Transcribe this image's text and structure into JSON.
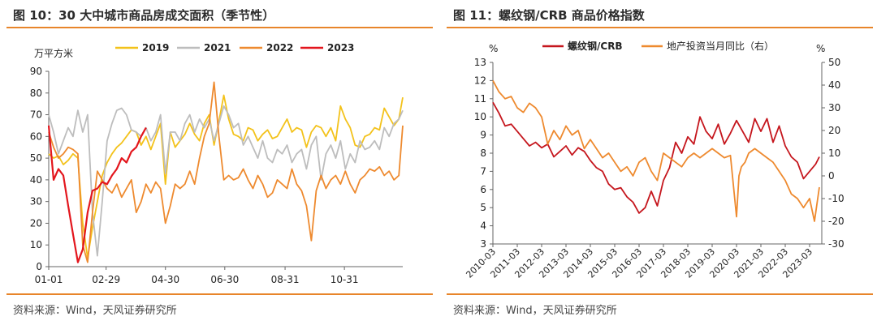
{
  "colors": {
    "accent": "#e8852a",
    "c2019": "#f3c21b",
    "c2021": "#bdbdbd",
    "c2022": "#ee8a2f",
    "c2023": "#e3161d",
    "rebar": "#c5161d",
    "landinv": "#ee8a2f"
  },
  "left": {
    "title": "图 10：30 大中城市商品房成交面积（季节性）",
    "source": "资料来源：Wind，天风证券研究所"
  },
  "right": {
    "title": "图 11：螺纹钢/CRB 商品价格指数",
    "source": "资料来源：Wind，天风证券研究所"
  },
  "chart_data": [
    {
      "type": "line",
      "title": "30 大中城市商品房成交面积（季节性）",
      "ylabel": "万平方米",
      "ylim": [
        0,
        90
      ],
      "yticks": [
        "0",
        "10",
        "20",
        "30",
        "40",
        "50",
        "60",
        "70",
        "80",
        "90"
      ],
      "xlim": [
        1,
        365
      ],
      "xtick_labels": [
        {
          "d": 1,
          "label": "01-01"
        },
        {
          "d": 60,
          "label": "02-29"
        },
        {
          "d": 121,
          "label": "04-30"
        },
        {
          "d": 182,
          "label": "06-30"
        },
        {
          "d": 244,
          "label": "08-31"
        },
        {
          "d": 305,
          "label": "10-31"
        }
      ],
      "series": [
        {
          "name": "2019",
          "color": "#f3c21b",
          "x": [
            1,
            6,
            11,
            16,
            21,
            26,
            31,
            36,
            41,
            46,
            51,
            56,
            61,
            66,
            71,
            76,
            81,
            86,
            91,
            96,
            101,
            106,
            111,
            116,
            121,
            126,
            131,
            136,
            141,
            146,
            151,
            156,
            161,
            166,
            171,
            176,
            181,
            186,
            191,
            196,
            201,
            206,
            211,
            216,
            221,
            226,
            231,
            236,
            241,
            246,
            251,
            256,
            261,
            266,
            271,
            276,
            281,
            286,
            291,
            296,
            301,
            306,
            311,
            316,
            321,
            326,
            331,
            336,
            341,
            346,
            351,
            356,
            361,
            365
          ],
          "values": [
            52,
            50,
            51,
            47,
            49,
            52,
            50,
            20,
            4,
            18,
            30,
            42,
            48,
            52,
            55,
            57,
            60,
            63,
            62,
            56,
            60,
            54,
            60,
            66,
            38,
            62,
            55,
            58,
            61,
            66,
            61,
            58,
            66,
            70,
            56,
            67,
            79,
            68,
            61,
            60,
            58,
            64,
            63,
            58,
            61,
            63,
            59,
            60,
            64,
            68,
            62,
            64,
            63,
            55,
            62,
            65,
            64,
            60,
            64,
            58,
            74,
            68,
            64,
            56,
            55,
            60,
            61,
            64,
            63,
            73,
            69,
            65,
            68,
            78
          ]
        },
        {
          "name": "2021",
          "color": "#bdbdbd",
          "x": [
            1,
            6,
            11,
            16,
            21,
            26,
            31,
            36,
            41,
            46,
            51,
            56,
            61,
            66,
            71,
            76,
            81,
            86,
            91,
            96,
            101,
            106,
            111,
            116,
            121,
            126,
            131,
            136,
            141,
            146,
            151,
            156,
            161,
            166,
            171,
            176,
            181,
            186,
            191,
            196,
            201,
            206,
            211,
            216,
            221,
            226,
            231,
            236,
            241,
            246,
            251,
            256,
            261,
            266,
            271,
            276,
            281,
            286,
            291,
            296,
            301,
            306,
            311,
            316,
            321,
            326,
            331,
            336,
            341,
            346,
            351,
            356,
            361,
            365
          ],
          "values": [
            70,
            62,
            52,
            58,
            64,
            60,
            72,
            62,
            70,
            25,
            5,
            30,
            58,
            66,
            72,
            73,
            70,
            63,
            62,
            60,
            64,
            58,
            62,
            70,
            43,
            62,
            62,
            58,
            66,
            70,
            62,
            68,
            64,
            68,
            58,
            66,
            74,
            70,
            64,
            66,
            56,
            60,
            55,
            50,
            58,
            50,
            48,
            54,
            52,
            56,
            48,
            52,
            54,
            45,
            56,
            60,
            40,
            52,
            56,
            50,
            58,
            45,
            52,
            48,
            58,
            54,
            55,
            58,
            54,
            64,
            60,
            66,
            68,
            72
          ]
        },
        {
          "name": "2022",
          "color": "#ee8a2f",
          "x": [
            1,
            6,
            11,
            16,
            21,
            26,
            31,
            36,
            41,
            46,
            51,
            56,
            61,
            66,
            71,
            76,
            81,
            86,
            91,
            96,
            101,
            106,
            111,
            116,
            121,
            126,
            131,
            136,
            141,
            146,
            151,
            156,
            161,
            166,
            171,
            176,
            181,
            186,
            191,
            196,
            201,
            206,
            211,
            216,
            221,
            226,
            231,
            236,
            241,
            246,
            251,
            256,
            261,
            266,
            271,
            276,
            281,
            286,
            291,
            296,
            301,
            306,
            311,
            316,
            321,
            326,
            331,
            336,
            341,
            346,
            351,
            356,
            361,
            365
          ],
          "values": [
            62,
            55,
            50,
            52,
            55,
            54,
            52,
            10,
            2,
            25,
            44,
            40,
            36,
            34,
            38,
            32,
            36,
            40,
            25,
            30,
            38,
            34,
            39,
            36,
            20,
            28,
            38,
            36,
            38,
            44,
            38,
            50,
            60,
            66,
            85,
            60,
            40,
            42,
            40,
            41,
            45,
            40,
            36,
            42,
            38,
            32,
            34,
            40,
            38,
            36,
            45,
            38,
            35,
            28,
            12,
            35,
            42,
            36,
            40,
            42,
            38,
            44,
            38,
            34,
            40,
            42,
            45,
            44,
            46,
            42,
            44,
            40,
            42,
            65
          ]
        },
        {
          "name": "2023",
          "color": "#e3161d",
          "x": [
            1,
            6,
            11,
            16,
            21,
            26,
            31,
            36,
            41,
            46,
            51,
            56,
            61,
            66,
            71,
            76,
            81,
            86,
            91,
            96,
            101
          ],
          "values": [
            65,
            40,
            45,
            42,
            28,
            15,
            2,
            8,
            25,
            35,
            36,
            39,
            38,
            42,
            45,
            50,
            48,
            53,
            55,
            60,
            64
          ]
        }
      ],
      "legend": [
        "2019",
        "2021",
        "2022",
        "2023"
      ]
    },
    {
      "type": "line",
      "title": "螺纹钢/CRB 商品价格指数",
      "ylabel_left": "%",
      "ylabel_right": "%",
      "ylim_left": [
        3,
        13
      ],
      "yticks_left": [
        "3",
        "4",
        "5",
        "6",
        "7",
        "8",
        "9",
        "10",
        "11",
        "12",
        "13"
      ],
      "ylim_right": [
        -30,
        50
      ],
      "yticks_right": [
        "-30",
        "-20",
        "-10",
        "0",
        "10",
        "20",
        "30",
        "40",
        "50"
      ],
      "xlim": [
        2010.0,
        2023.5
      ],
      "xtick_labels": [
        {
          "x": 2010.0,
          "label": "2010-03"
        },
        {
          "x": 2011.0,
          "label": "2011-03"
        },
        {
          "x": 2012.0,
          "label": "2012-03"
        },
        {
          "x": 2013.0,
          "label": "2013-03"
        },
        {
          "x": 2014.0,
          "label": "2014-03"
        },
        {
          "x": 2015.0,
          "label": "2015-03"
        },
        {
          "x": 2016.0,
          "label": "2016-03"
        },
        {
          "x": 2017.0,
          "label": "2017-03"
        },
        {
          "x": 2018.0,
          "label": "2018-03"
        },
        {
          "x": 2019.0,
          "label": "2019-03"
        },
        {
          "x": 2020.0,
          "label": "2020-03"
        },
        {
          "x": 2021.0,
          "label": "2021-03"
        },
        {
          "x": 2022.0,
          "label": "2022-03"
        },
        {
          "x": 2023.0,
          "label": "2023-03"
        }
      ],
      "series": [
        {
          "name": "螺纹钢/CRB",
          "axis": "left",
          "color": "#c5161d",
          "x": [
            2010.0,
            2010.25,
            2010.5,
            2010.75,
            2011.0,
            2011.25,
            2011.5,
            2011.75,
            2012.0,
            2012.25,
            2012.5,
            2012.75,
            2013.0,
            2013.25,
            2013.5,
            2013.75,
            2014.0,
            2014.25,
            2014.5,
            2014.75,
            2015.0,
            2015.25,
            2015.5,
            2015.75,
            2016.0,
            2016.25,
            2016.5,
            2016.75,
            2017.0,
            2017.25,
            2017.5,
            2017.75,
            2018.0,
            2018.25,
            2018.5,
            2018.75,
            2019.0,
            2019.25,
            2019.5,
            2019.75,
            2020.0,
            2020.25,
            2020.5,
            2020.75,
            2021.0,
            2021.25,
            2021.5,
            2021.75,
            2022.0,
            2022.25,
            2022.5,
            2022.75,
            2023.0,
            2023.25,
            2023.4
          ],
          "values": [
            10.8,
            10.2,
            9.5,
            9.6,
            9.2,
            8.8,
            8.4,
            8.6,
            8.3,
            8.5,
            7.8,
            8.1,
            8.4,
            7.9,
            8.3,
            8.1,
            7.6,
            7.2,
            7.0,
            6.3,
            6.0,
            6.1,
            5.6,
            5.3,
            4.7,
            5.0,
            5.9,
            5.1,
            6.5,
            7.2,
            8.6,
            8.0,
            8.9,
            8.5,
            10.0,
            9.2,
            8.8,
            9.6,
            8.5,
            9.1,
            9.8,
            9.2,
            8.6,
            9.9,
            9.2,
            9.9,
            8.6,
            9.5,
            8.4,
            7.8,
            7.5,
            6.6,
            7.0,
            7.4,
            7.8
          ]
        },
        {
          "name": "地产投资当月同比（右）",
          "axis": "right",
          "color": "#ee8a2f",
          "x": [
            2010.0,
            2010.25,
            2010.5,
            2010.75,
            2011.0,
            2011.25,
            2011.5,
            2011.75,
            2012.0,
            2012.25,
            2012.5,
            2012.75,
            2013.0,
            2013.25,
            2013.5,
            2013.75,
            2014.0,
            2014.25,
            2014.5,
            2014.75,
            2015.0,
            2015.25,
            2015.5,
            2015.75,
            2016.0,
            2016.25,
            2016.5,
            2016.75,
            2017.0,
            2017.25,
            2017.5,
            2017.75,
            2018.0,
            2018.25,
            2018.5,
            2018.75,
            2019.0,
            2019.25,
            2019.5,
            2019.75,
            2020.0,
            2020.1,
            2020.2,
            2020.35,
            2020.5,
            2020.75,
            2021.0,
            2021.25,
            2021.5,
            2021.75,
            2022.0,
            2022.25,
            2022.5,
            2022.75,
            2023.0,
            2023.2,
            2023.4
          ],
          "values": [
            42,
            37,
            34,
            35,
            30,
            28,
            32,
            30,
            26,
            14,
            20,
            16,
            22,
            18,
            20,
            12,
            16,
            12,
            8,
            10,
            6,
            2,
            4,
            0,
            6,
            8,
            2,
            -2,
            10,
            8,
            6,
            4,
            8,
            10,
            8,
            10,
            12,
            10,
            8,
            9,
            -18,
            0,
            4,
            6,
            10,
            12,
            10,
            8,
            6,
            2,
            -2,
            -8,
            -10,
            -14,
            -10,
            -20,
            -5
          ]
        }
      ],
      "legend": [
        "螺纹钢/CRB",
        "地产投资当月同比（右）"
      ]
    }
  ]
}
